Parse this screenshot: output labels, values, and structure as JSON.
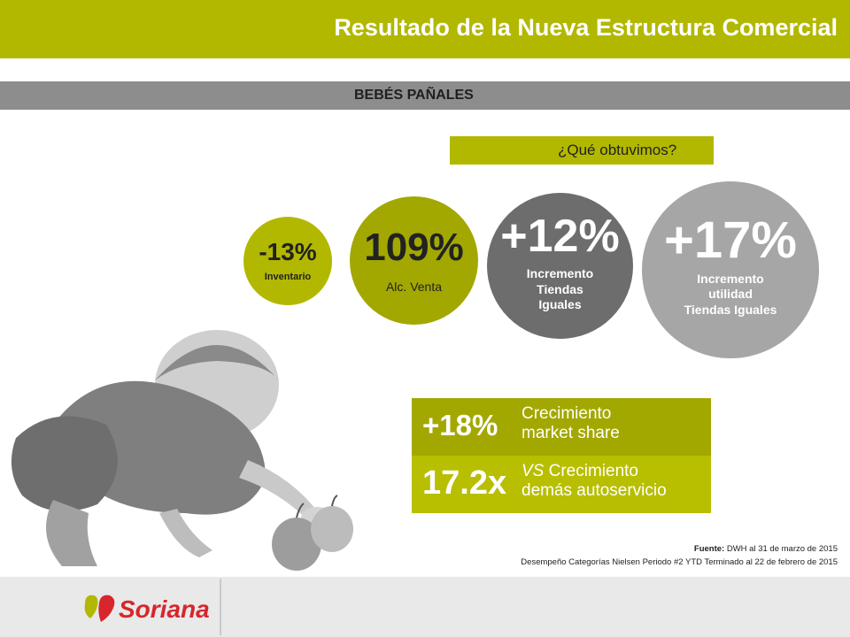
{
  "header": {
    "title": "Resultado de la Nueva Estructura Comercial"
  },
  "category": {
    "label": "BEBÉS PAÑALES"
  },
  "question": {
    "label": "¿Qué obtuvimos?"
  },
  "circles": [
    {
      "value": "-13%",
      "label": "Inventario",
      "color": "#b2b800"
    },
    {
      "value": "109%",
      "label": "Alc. Venta",
      "color": "#a3a800"
    },
    {
      "value": "+12%",
      "label_lines": [
        "Incremento",
        "Tiendas",
        "Iguales"
      ],
      "color": "#6d6d6d"
    },
    {
      "value": "+17%",
      "label_lines": [
        "Incremento",
        "utilidad",
        "Tiendas Iguales"
      ],
      "color": "#a6a6a6"
    }
  ],
  "metrics": [
    {
      "value": "+18%",
      "label_lines": [
        "Crecimiento",
        "market share"
      ]
    },
    {
      "value": "17.2x",
      "label_prefix": "VS",
      "label_line1_rest": " Crecimiento",
      "label_line2": "demás autoservicio"
    }
  ],
  "source": {
    "line1_bold": "Fuente:",
    "line1_rest": " DWH al 31 de marzo de 2015",
    "line2": "Desempeño Categorías Nielsen Periodo #2 YTD Terminado al 22 de febrero de 2015"
  },
  "footer": {
    "logo_text": "Soriana"
  },
  "colors": {
    "accent": "#b2b800",
    "gray_band": "#8d8d8d",
    "brand_red": "#d7262c"
  }
}
